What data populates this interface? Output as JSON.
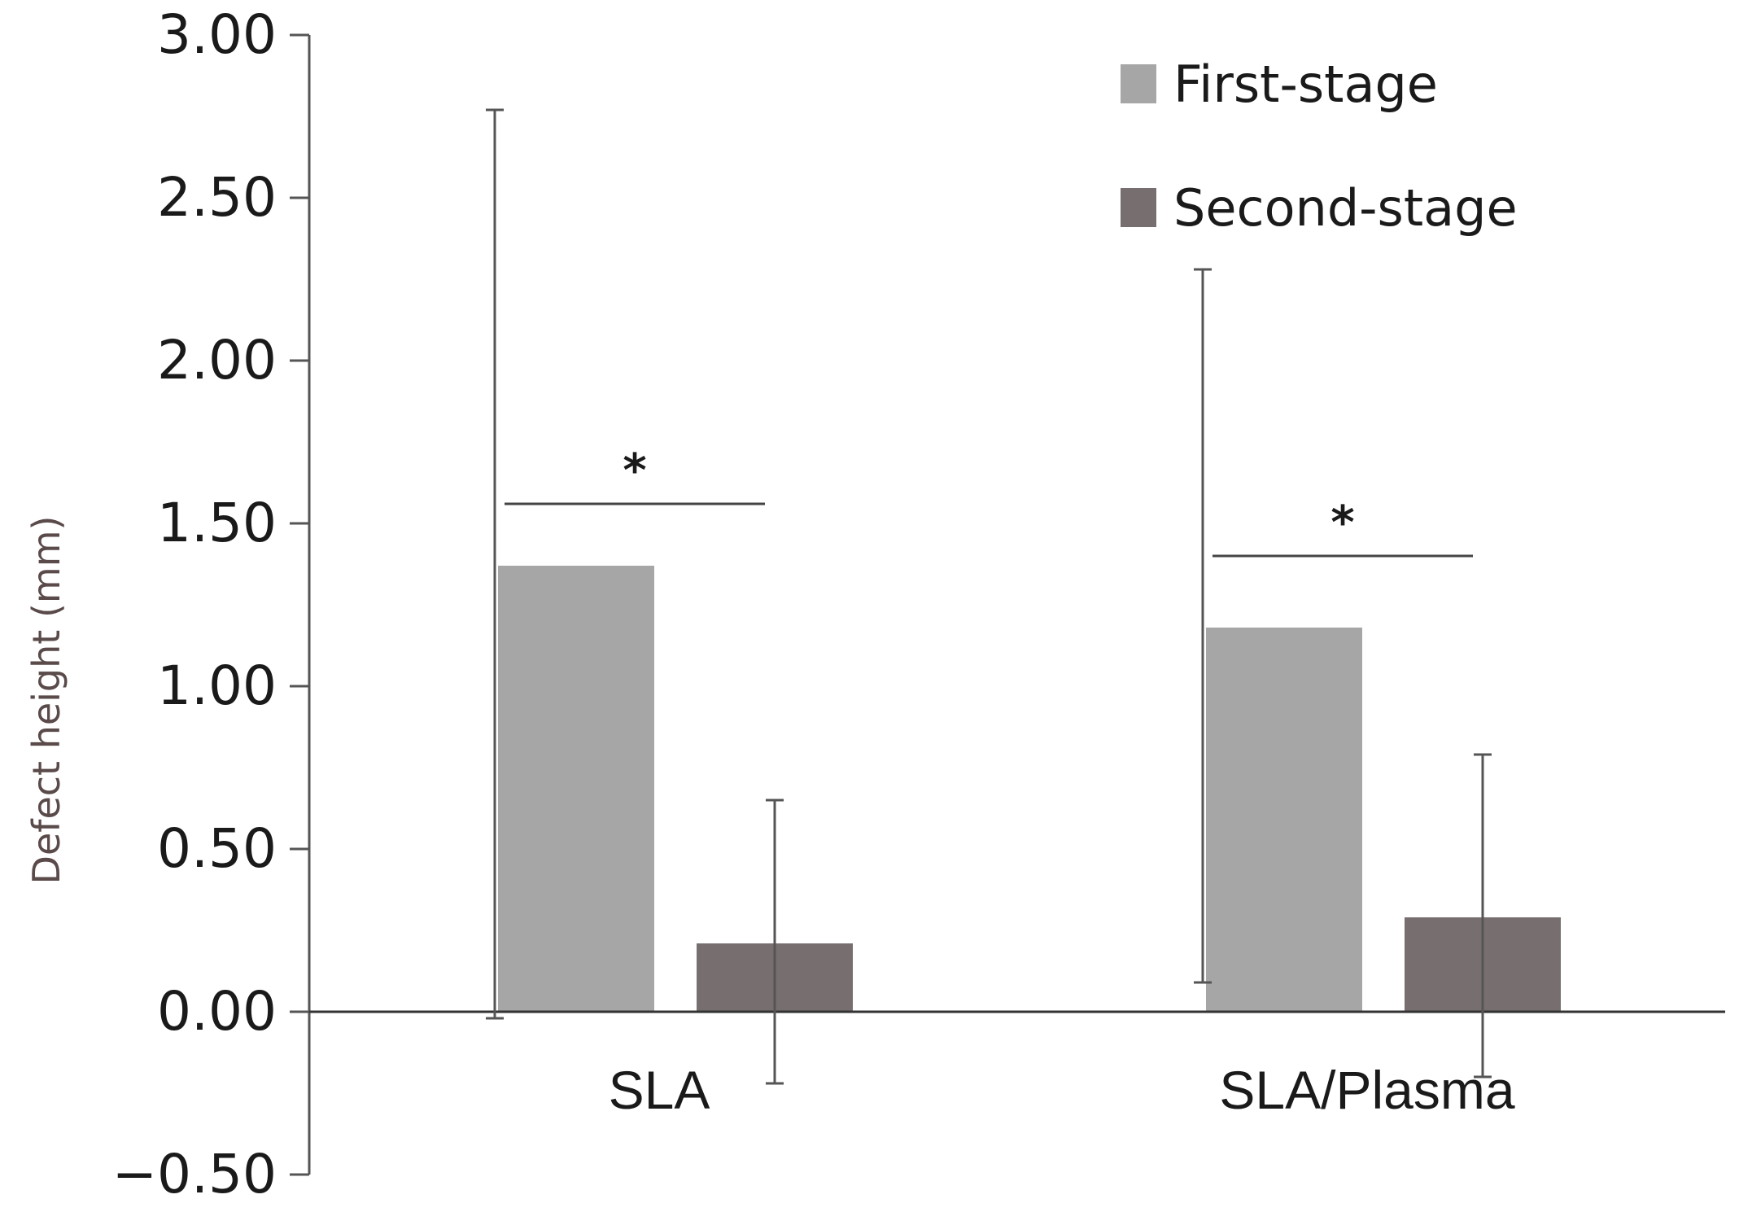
{
  "chart_data": {
    "type": "bar",
    "title": "",
    "xlabel": "",
    "ylabel": "Defect height (mm)",
    "ylim": [
      -0.5,
      3.0
    ],
    "yticks": [
      3.0,
      2.5,
      2.0,
      1.5,
      1.0,
      0.5,
      0.0,
      -0.5
    ],
    "ytick_labels": [
      "3.00",
      "2.50",
      "2.00",
      "1.50",
      "1.00",
      "0.50",
      "0.00",
      "−0.50"
    ],
    "categories": [
      "SLA",
      "SLA/Plasma"
    ],
    "series": [
      {
        "name": "First-stage",
        "color": "#a6a6a6",
        "values": [
          1.37,
          1.18
        ],
        "error_low": [
          -0.02,
          0.09
        ],
        "error_high": [
          2.77,
          2.28
        ]
      },
      {
        "name": "Second-stage",
        "color": "#776f6f",
        "values": [
          0.21,
          0.29
        ],
        "error_low": [
          -0.22,
          -0.2
        ],
        "error_high": [
          0.65,
          0.79
        ]
      }
    ],
    "annotations": [
      {
        "text": "*",
        "category": "SLA",
        "y": 1.56
      },
      {
        "text": "*",
        "category": "SLA/Plasma",
        "y": 1.4
      }
    ],
    "legend_position": "top-right",
    "grid": false
  }
}
